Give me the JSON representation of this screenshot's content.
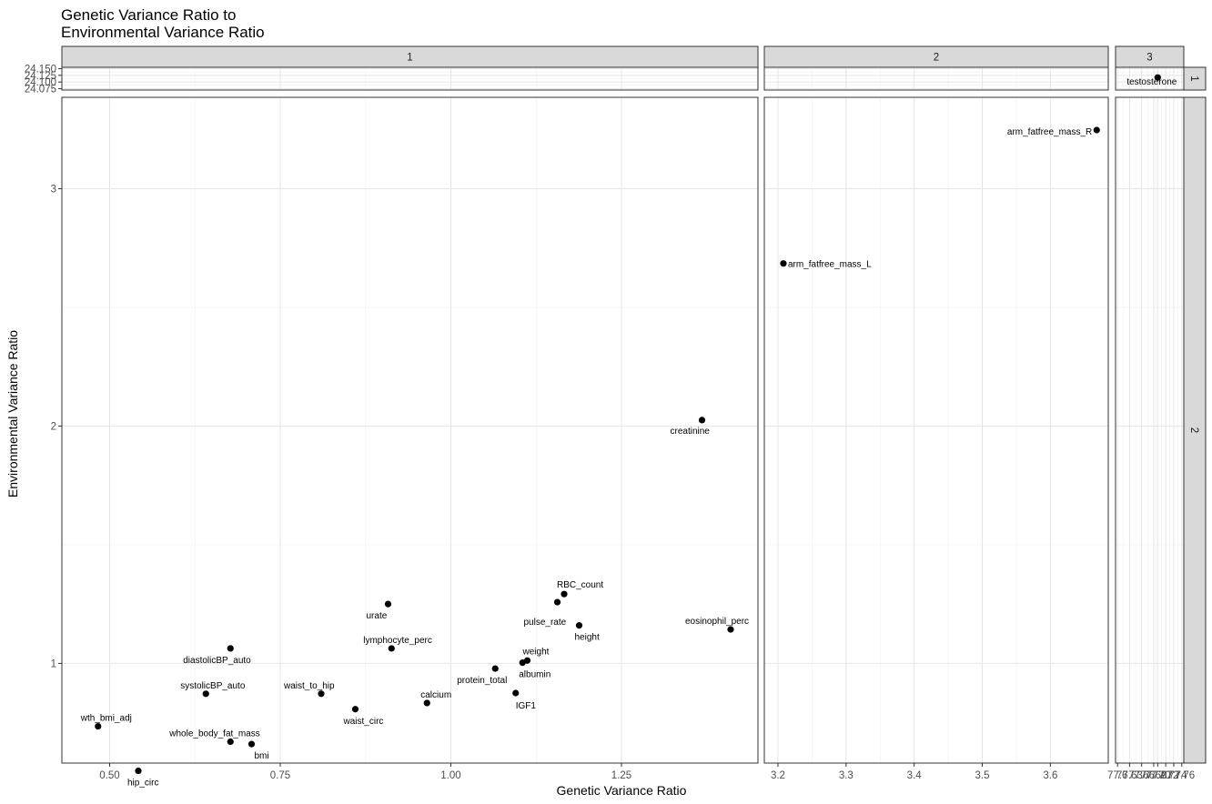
{
  "chart_data": {
    "type": "scatter",
    "title_line1": "Genetic Variance Ratio to",
    "title_line2": "Environmental Variance Ratio",
    "xlabel": "Genetic Variance Ratio",
    "ylabel": "Environmental Variance Ratio",
    "column_facets": [
      "1",
      "2",
      "3"
    ],
    "row_facets": [
      "1",
      "2"
    ],
    "grid": true,
    "panels": {
      "col_x": [
        {
          "xlim": [
            0.43,
            1.45
          ],
          "ticks": [
            {
              "v": 0.5,
              "t": "0.50"
            },
            {
              "v": 0.75,
              "t": "0.75"
            },
            {
              "v": 1.0,
              "t": "1.00"
            },
            {
              "v": 1.25,
              "t": "1.25"
            }
          ]
        },
        {
          "xlim": [
            3.18,
            3.685
          ],
          "ticks": [
            {
              "v": 3.2,
              "t": "3.2"
            },
            {
              "v": 3.3,
              "t": "3.3"
            },
            {
              "v": 3.4,
              "t": "3.4"
            },
            {
              "v": 3.5,
              "t": "3.5"
            },
            {
              "v": 3.6,
              "t": "3.6"
            }
          ]
        },
        {
          "xlim": [
            77.595,
            77.765
          ],
          "ticks": [
            {
              "v": 77.6,
              "t": "77.6"
            },
            {
              "v": 77.63,
              "t": "77.63"
            },
            {
              "v": 77.66,
              "t": "77.66"
            },
            {
              "v": 77.69,
              "t": "77.69"
            },
            {
              "v": 77.7,
              "t": "77.70"
            },
            {
              "v": 77.72,
              "t": "77.72"
            },
            {
              "v": 77.74,
              "t": "77.74"
            },
            {
              "v": 77.76,
              "t": "77.76"
            }
          ]
        }
      ],
      "row_y": [
        {
          "ylim": [
            24.07,
            24.155
          ],
          "ticks": [
            {
              "v": 24.075,
              "t": "24.075"
            },
            {
              "v": 24.1,
              "t": "24.100"
            },
            {
              "v": 24.125,
              "t": "24.125"
            },
            {
              "v": 24.15,
              "t": "24.150"
            }
          ]
        },
        {
          "ylim": [
            0.58,
            3.385
          ],
          "ticks": [
            {
              "v": 1,
              "t": "1"
            },
            {
              "v": 2,
              "t": "2"
            },
            {
              "v": 3,
              "t": "3"
            }
          ]
        }
      ]
    },
    "points": [
      {
        "label": "wth_bmi_adj",
        "x": 0.483,
        "y": 0.735,
        "row": 2,
        "col": 1,
        "pos": "above"
      },
      {
        "label": "hip_circ",
        "x": 0.542,
        "y": 0.547,
        "row": 2,
        "col": 1,
        "pos": "below"
      },
      {
        "label": "systolicBP_auto",
        "x": 0.641,
        "y": 0.872,
        "row": 2,
        "col": 1,
        "pos": "above"
      },
      {
        "label": "diastolicBP_auto",
        "x": 0.677,
        "y": 1.063,
        "row": 2,
        "col": 1,
        "pos": "below"
      },
      {
        "label": "whole_body_fat_mass",
        "x": 0.677,
        "y": 0.67,
        "row": 2,
        "col": 1,
        "pos": "above"
      },
      {
        "label": "bmi",
        "x": 0.708,
        "y": 0.66,
        "row": 2,
        "col": 1,
        "pos": "below-right"
      },
      {
        "label": "waist_to_hip",
        "x": 0.81,
        "y": 0.872,
        "row": 2,
        "col": 1,
        "pos": "above"
      },
      {
        "label": "waist_circ",
        "x": 0.86,
        "y": 0.807,
        "row": 2,
        "col": 1,
        "pos": "below-right"
      },
      {
        "label": "urate",
        "x": 0.908,
        "y": 1.25,
        "row": 2,
        "col": 1,
        "pos": "below-left"
      },
      {
        "label": "lymphocyte_perc",
        "x": 0.913,
        "y": 1.063,
        "row": 2,
        "col": 1,
        "pos": "above-right"
      },
      {
        "label": "calcium",
        "x": 0.965,
        "y": 0.833,
        "row": 2,
        "col": 1,
        "pos": "above-right"
      },
      {
        "label": "protein_total",
        "x": 1.065,
        "y": 0.978,
        "row": 2,
        "col": 1,
        "pos": "below-left"
      },
      {
        "label": "IGF1",
        "x": 1.095,
        "y": 0.875,
        "row": 2,
        "col": 1,
        "pos": "below-right"
      },
      {
        "label": "albumin",
        "x": 1.105,
        "y": 1.003,
        "row": 2,
        "col": 1,
        "pos": "below-right"
      },
      {
        "label": "weight",
        "x": 1.112,
        "y": 1.012,
        "row": 2,
        "col": 1,
        "pos": "above-right"
      },
      {
        "label": "pulse_rate",
        "x": 1.156,
        "y": 1.258,
        "row": 2,
        "col": 1,
        "pos": "below-left"
      },
      {
        "label": "RBC_count",
        "x": 1.166,
        "y": 1.292,
        "row": 2,
        "col": 1,
        "pos": "above-right"
      },
      {
        "label": "height",
        "x": 1.188,
        "y": 1.16,
        "row": 2,
        "col": 1,
        "pos": "below-right"
      },
      {
        "label": "creatinine",
        "x": 1.368,
        "y": 2.025,
        "row": 2,
        "col": 1,
        "pos": "below-left"
      },
      {
        "label": "eosinophil_perc",
        "x": 1.41,
        "y": 1.143,
        "row": 2,
        "col": 1,
        "pos": "above-left"
      },
      {
        "label": "arm_fatfree_mass_L",
        "x": 3.208,
        "y": 2.685,
        "row": 2,
        "col": 2,
        "pos": "right"
      },
      {
        "label": "arm_fatfree_mass_R",
        "x": 3.668,
        "y": 3.247,
        "row": 2,
        "col": 2,
        "pos": "left"
      },
      {
        "label": "testosterone",
        "x": 77.7,
        "y": 24.117,
        "row": 1,
        "col": 3,
        "pos": "below"
      }
    ]
  }
}
